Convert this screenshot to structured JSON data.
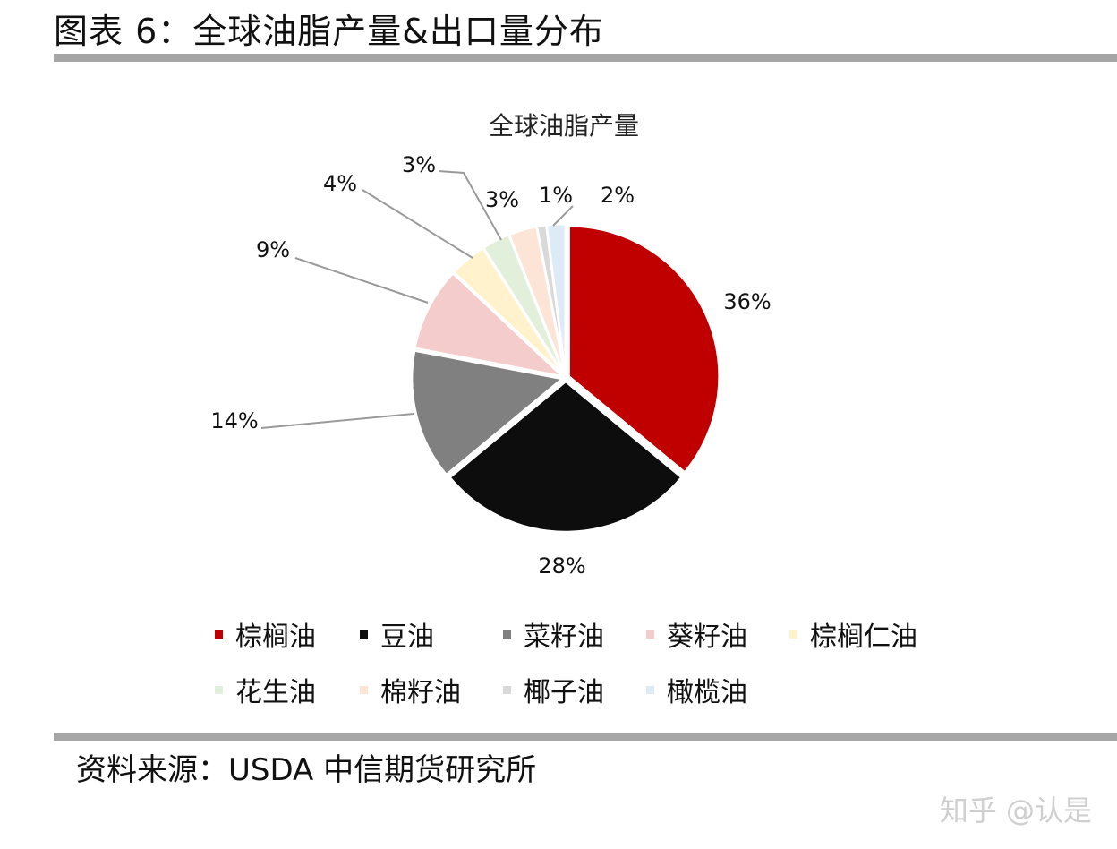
{
  "header": {
    "figure_title": "图表 6：全球油脂产量&出口量分布"
  },
  "footer": {
    "source": "资料来源：USDA 中信期货研究所",
    "watermark": "知乎 @认是"
  },
  "chart_data": {
    "type": "pie",
    "title": "全球油脂产量",
    "categories": [
      "棕榈油",
      "豆油",
      "菜籽油",
      "葵籽油",
      "棕榈仁油",
      "花生油",
      "棉籽油",
      "椰子油",
      "橄榄油"
    ],
    "values": [
      36,
      28,
      14,
      9,
      4,
      3,
      3,
      1,
      2
    ],
    "value_labels": [
      "36%",
      "28%",
      "14%",
      "9%",
      "4%",
      "3%",
      "3%",
      "1%",
      "2%"
    ],
    "unit": "%",
    "colors": [
      "#c00000",
      "#0d0d0d",
      "#808080",
      "#f4cccc",
      "#fff2cc",
      "#e2efda",
      "#fce4d6",
      "#d9d9d9",
      "#ddebf7"
    ],
    "legend_position": "bottom"
  }
}
